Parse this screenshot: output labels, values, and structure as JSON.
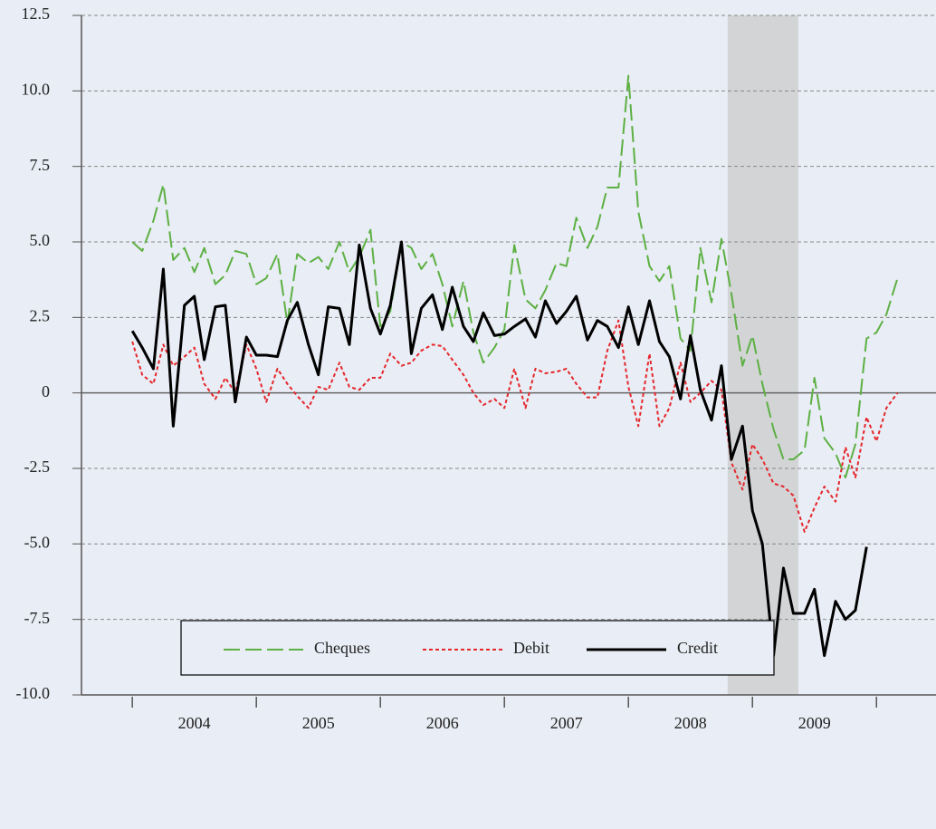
{
  "chart_data": {
    "type": "line",
    "x": [
      2004,
      2004.08,
      2004.17,
      2004.25,
      2004.33,
      2004.42,
      2004.5,
      2004.58,
      2004.67,
      2004.75,
      2004.83,
      2004.92,
      2005,
      2005.08,
      2005.17,
      2005.25,
      2005.33,
      2005.42,
      2005.5,
      2005.58,
      2005.67,
      2005.75,
      2005.83,
      2005.92,
      2006,
      2006.08,
      2006.17,
      2006.25,
      2006.33,
      2006.42,
      2006.5,
      2006.58,
      2006.67,
      2006.75,
      2006.83,
      2006.92,
      2007,
      2007.08,
      2007.17,
      2007.25,
      2007.33,
      2007.42,
      2007.5,
      2007.58,
      2007.67,
      2007.75,
      2007.83,
      2007.92,
      2008,
      2008.08,
      2008.17,
      2008.25,
      2008.33,
      2008.42,
      2008.5,
      2008.58,
      2008.67,
      2008.75,
      2008.83,
      2008.92,
      2009,
      2009.08,
      2009.17,
      2009.25,
      2009.33,
      2009.42,
      2009.5,
      2009.58,
      2009.67,
      2009.75,
      2009.83,
      2009.92,
      2010,
      2010.08,
      2010.17
    ],
    "series": [
      {
        "name": "Cheques",
        "color": "#5db043",
        "style": "dashed",
        "values": [
          5.0,
          4.7,
          5.7,
          6.9,
          4.4,
          4.8,
          4.0,
          4.8,
          3.6,
          3.9,
          4.7,
          4.6,
          3.6,
          3.8,
          4.6,
          2.3,
          4.6,
          4.3,
          4.5,
          4.1,
          5.0,
          4.0,
          4.5,
          5.4,
          2.2,
          2.7,
          5.0,
          4.8,
          4.1,
          4.6,
          3.6,
          2.2,
          3.7,
          2.0,
          1.0,
          1.5,
          2.1,
          4.9,
          3.1,
          2.8,
          3.4,
          4.3,
          4.2,
          5.8,
          4.8,
          5.5,
          6.8,
          6.8,
          10.5,
          6.0,
          4.2,
          3.7,
          4.2,
          1.8,
          1.4,
          4.8,
          3.0,
          5.1,
          3.3,
          0.9,
          1.9,
          0.3,
          -1.2,
          -2.2,
          -2.2,
          -1.9,
          0.5,
          -1.5,
          -2.0,
          -2.8,
          -1.7,
          1.8,
          2.0,
          2.6,
          3.8
        ]
      },
      {
        "name": "Debit",
        "color": "#e5262b",
        "style": "dotted",
        "values": [
          1.7,
          0.6,
          0.3,
          1.6,
          0.9,
          1.2,
          1.5,
          0.3,
          -0.2,
          0.5,
          0.0,
          1.6,
          0.8,
          -0.3,
          0.8,
          0.3,
          -0.1,
          -0.5,
          0.2,
          0.1,
          1.0,
          0.2,
          0.1,
          0.5,
          0.5,
          1.3,
          0.9,
          1.0,
          1.4,
          1.6,
          1.55,
          1.1,
          0.6,
          0.0,
          -0.4,
          -0.2,
          -0.5,
          0.8,
          -0.5,
          0.8,
          0.65,
          0.7,
          0.8,
          0.3,
          -0.15,
          -0.15,
          1.4,
          2.4,
          0.2,
          -1.1,
          1.3,
          -1.1,
          -0.5,
          1.0,
          -0.3,
          0.0,
          0.4,
          0.1,
          -2.3,
          -3.2,
          -1.7,
          -2.2,
          -3.0,
          -3.1,
          -3.4,
          -4.6,
          -3.8,
          -3.1,
          -3.6,
          -1.8,
          -2.8,
          -0.8,
          -1.6,
          -0.5,
          0.0
        ]
      },
      {
        "name": "Credit",
        "color": "#000000",
        "style": "solid",
        "values": [
          2.05,
          1.5,
          0.8,
          4.1,
          -1.1,
          2.9,
          3.2,
          1.1,
          2.85,
          2.9,
          -0.3,
          1.85,
          1.25,
          1.25,
          1.2,
          2.4,
          3.0,
          1.6,
          0.6,
          2.85,
          2.8,
          1.6,
          4.9,
          2.8,
          1.95,
          2.9,
          5.0,
          1.3,
          2.8,
          3.25,
          2.1,
          3.5,
          2.2,
          1.7,
          2.65,
          1.9,
          1.95,
          2.2,
          2.45,
          1.85,
          3.05,
          2.3,
          2.7,
          3.2,
          1.75,
          2.4,
          2.2,
          1.5,
          2.85,
          1.6,
          3.05,
          1.7,
          1.2,
          -0.2,
          1.9,
          0.1,
          -0.9,
          0.9,
          -2.2,
          -1.1,
          -3.9,
          -5.0,
          -8.7,
          -5.8,
          -7.3,
          -7.3,
          -6.5,
          -8.7,
          -6.9,
          -7.5,
          -7.2,
          -5.1,
          null,
          null,
          null
        ]
      }
    ],
    "xlim": [
      2003.59,
      2010.48
    ],
    "xticks": [
      2004,
      2005,
      2006,
      2007,
      2008,
      2009,
      2010
    ],
    "xtick_labels": [
      {
        "value": 2004.5,
        "label": "2004"
      },
      {
        "value": 2005.5,
        "label": "2005"
      },
      {
        "value": 2006.5,
        "label": "2006"
      },
      {
        "value": 2007.5,
        "label": "2007"
      },
      {
        "value": 2008.5,
        "label": "2008"
      },
      {
        "value": 2009.5,
        "label": "2009"
      }
    ],
    "ylim": [
      -10,
      12.5
    ],
    "yticks": [
      {
        "value": -10,
        "label": "-10.0"
      },
      {
        "value": -7.5,
        "label": "-7.5"
      },
      {
        "value": -5,
        "label": "-5.0"
      },
      -2.5,
      0,
      2.5,
      {
        "value": 5,
        "label": "5.0"
      },
      7.5,
      {
        "value": 10,
        "label": "10.0"
      },
      12.5
    ],
    "shaded_region": [
      2008.8,
      2009.37
    ],
    "grid": true,
    "legend": "bottom"
  }
}
